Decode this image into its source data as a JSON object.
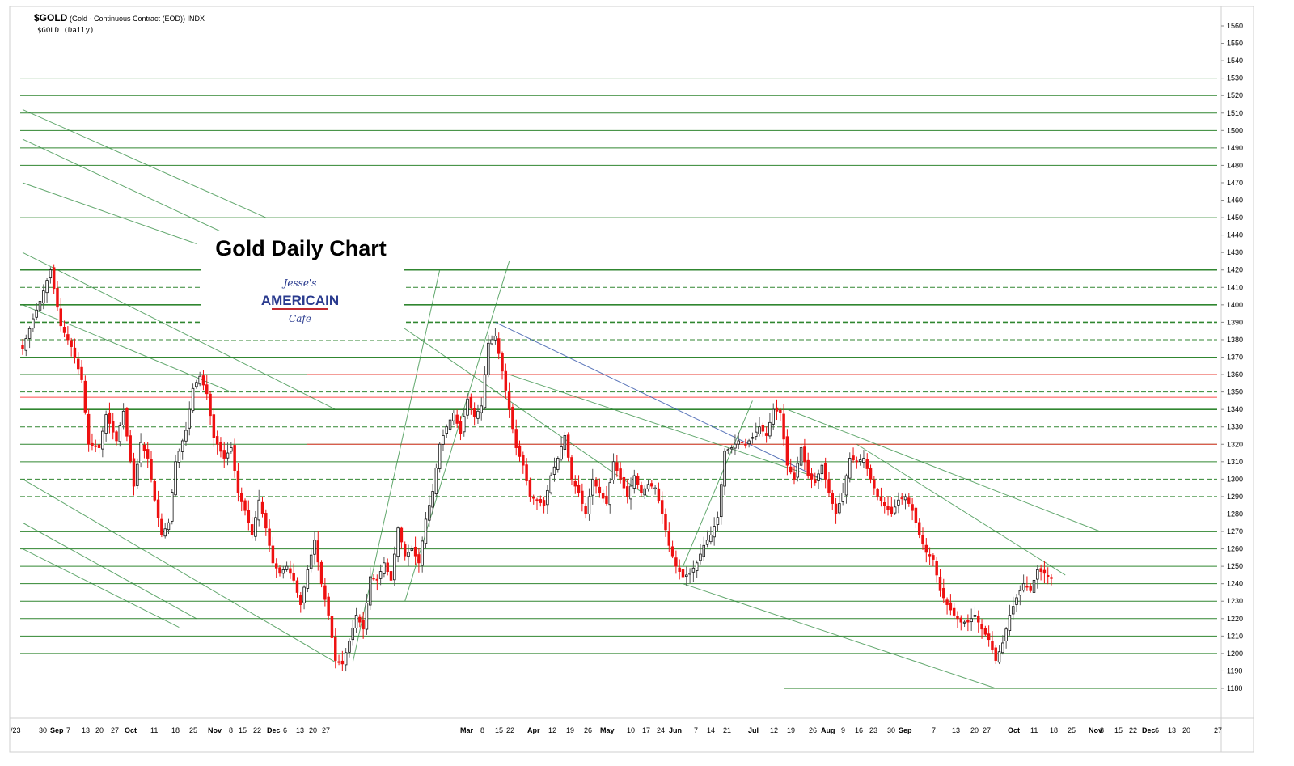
{
  "header": {
    "symbol": "$GOLD",
    "description": "(Gold - Continuous Contract (EOD)) INDX",
    "subtitle": "$GOLD (Daily)"
  },
  "title_box": {
    "title": "Gold Daily Chart",
    "logo_top": "Jesse's",
    "logo_main": "AMERICAIN",
    "logo_bottom": "Cafe"
  },
  "colors": {
    "up_candle": "#111111",
    "down_candle": "#ee1111",
    "support_line": "#1a7a1a",
    "resistance_line": "#ff3333",
    "channel_line": "#2e8b3e",
    "blue_trend": "#3355aa"
  },
  "chart_data": {
    "type": "candlestick",
    "title": "Gold Daily Chart",
    "y_axis": {
      "side": "right",
      "min": 1170,
      "max": 1565,
      "ticks": [
        1180,
        1190,
        1200,
        1210,
        1220,
        1230,
        1240,
        1250,
        1260,
        1270,
        1280,
        1290,
        1300,
        1310,
        1320,
        1330,
        1340,
        1350,
        1360,
        1370,
        1380,
        1390,
        1400,
        1410,
        1420,
        1430,
        1440,
        1450,
        1460,
        1470,
        1480,
        1490,
        1500,
        1510,
        1520,
        1530,
        1540,
        1550,
        1560
      ]
    },
    "x_axis": {
      "labels": [
        {
          "t": "/23",
          "m": false
        },
        {
          "t": "30",
          "m": false
        },
        {
          "t": "Sep",
          "m": true
        },
        {
          "t": "7",
          "m": false
        },
        {
          "t": "13",
          "m": false
        },
        {
          "t": "20",
          "m": false
        },
        {
          "t": "27",
          "m": false
        },
        {
          "t": "Oct",
          "m": true
        },
        {
          "t": "11",
          "m": false
        },
        {
          "t": "18",
          "m": false
        },
        {
          "t": "25",
          "m": false
        },
        {
          "t": "Nov",
          "m": true
        },
        {
          "t": "8",
          "m": false
        },
        {
          "t": "15",
          "m": false
        },
        {
          "t": "22",
          "m": false
        },
        {
          "t": "Dec",
          "m": true
        },
        {
          "t": "6",
          "m": false
        },
        {
          "t": "13",
          "m": false
        },
        {
          "t": "20",
          "m": false
        },
        {
          "t": "27",
          "m": false
        },
        {
          "t": "Mar",
          "m": true
        },
        {
          "t": "8",
          "m": false
        },
        {
          "t": "15",
          "m": false
        },
        {
          "t": "22",
          "m": false
        },
        {
          "t": "Apr",
          "m": true
        },
        {
          "t": "12",
          "m": false
        },
        {
          "t": "19",
          "m": false
        },
        {
          "t": "26",
          "m": false
        },
        {
          "t": "May",
          "m": true
        },
        {
          "t": "10",
          "m": false
        },
        {
          "t": "17",
          "m": false
        },
        {
          "t": "24",
          "m": false
        },
        {
          "t": "Jun",
          "m": true
        },
        {
          "t": "7",
          "m": false
        },
        {
          "t": "14",
          "m": false
        },
        {
          "t": "21",
          "m": false
        },
        {
          "t": "Jul",
          "m": true
        },
        {
          "t": "12",
          "m": false
        },
        {
          "t": "19",
          "m": false
        },
        {
          "t": "26",
          "m": false
        },
        {
          "t": "Aug",
          "m": true
        },
        {
          "t": "9",
          "m": false
        },
        {
          "t": "16",
          "m": false
        },
        {
          "t": "23",
          "m": false
        },
        {
          "t": "30",
          "m": false
        },
        {
          "t": "Sep",
          "m": true
        },
        {
          "t": "7",
          "m": false
        },
        {
          "t": "13",
          "m": false
        },
        {
          "t": "20",
          "m": false
        },
        {
          "t": "27",
          "m": false
        },
        {
          "t": "Oct",
          "m": true
        },
        {
          "t": "11",
          "m": false
        },
        {
          "t": "18",
          "m": false
        },
        {
          "t": "25",
          "m": false
        },
        {
          "t": "Nov",
          "m": true
        },
        {
          "t": "8",
          "m": false
        },
        {
          "t": "15",
          "m": false
        },
        {
          "t": "22",
          "m": false
        },
        {
          "t": "Dec",
          "m": true
        },
        {
          "t": "6",
          "m": false
        },
        {
          "t": "13",
          "m": false
        },
        {
          "t": "20",
          "m": false
        },
        {
          "t": "27",
          "m": false
        }
      ]
    },
    "price_anchors": [
      [
        0,
        1375
      ],
      [
        3,
        1392
      ],
      [
        5,
        1402
      ],
      [
        8,
        1420
      ],
      [
        11,
        1388
      ],
      [
        14,
        1376
      ],
      [
        17,
        1357
      ],
      [
        19,
        1320
      ],
      [
        22,
        1318
      ],
      [
        24,
        1337
      ],
      [
        27,
        1322
      ],
      [
        29,
        1339
      ],
      [
        32,
        1296
      ],
      [
        34,
        1321
      ],
      [
        36,
        1312
      ],
      [
        38,
        1288
      ],
      [
        40,
        1268
      ],
      [
        42,
        1275
      ],
      [
        44,
        1310
      ],
      [
        47,
        1328
      ],
      [
        49,
        1352
      ],
      [
        51,
        1359
      ],
      [
        53,
        1349
      ],
      [
        55,
        1324
      ],
      [
        58,
        1312
      ],
      [
        60,
        1318
      ],
      [
        62,
        1292
      ],
      [
        64,
        1282
      ],
      [
        66,
        1268
      ],
      [
        68,
        1288
      ],
      [
        70,
        1272
      ],
      [
        72,
        1252
      ],
      [
        74,
        1246
      ],
      [
        76,
        1250
      ],
      [
        78,
        1242
      ],
      [
        80,
        1228
      ],
      [
        82,
        1248
      ],
      [
        84,
        1265
      ],
      [
        86,
        1240
      ],
      [
        88,
        1222
      ],
      [
        90,
        1196
      ],
      [
        92,
        1194
      ],
      [
        94,
        1207
      ],
      [
        96,
        1222
      ],
      [
        98,
        1214
      ],
      [
        100,
        1244
      ],
      [
        102,
        1242
      ],
      [
        104,
        1252
      ],
      [
        106,
        1242
      ],
      [
        108,
        1272
      ],
      [
        110,
        1256
      ],
      [
        112,
        1260
      ],
      [
        114,
        1252
      ],
      [
        116,
        1277
      ],
      [
        118,
        1293
      ],
      [
        120,
        1320
      ],
      [
        122,
        1330
      ],
      [
        124,
        1338
      ],
      [
        126,
        1326
      ],
      [
        128,
        1346
      ],
      [
        130,
        1336
      ],
      [
        132,
        1342
      ],
      [
        134,
        1378
      ],
      [
        136,
        1382
      ],
      [
        138,
        1362
      ],
      [
        140,
        1340
      ],
      [
        142,
        1318
      ],
      [
        144,
        1308
      ],
      [
        146,
        1290
      ],
      [
        148,
        1288
      ],
      [
        150,
        1285
      ],
      [
        152,
        1302
      ],
      [
        154,
        1312
      ],
      [
        156,
        1325
      ],
      [
        158,
        1300
      ],
      [
        160,
        1292
      ],
      [
        162,
        1280
      ],
      [
        164,
        1300
      ],
      [
        166,
        1292
      ],
      [
        168,
        1286
      ],
      [
        170,
        1310
      ],
      [
        172,
        1300
      ],
      [
        174,
        1290
      ],
      [
        176,
        1302
      ],
      [
        178,
        1292
      ],
      [
        180,
        1297
      ],
      [
        182,
        1295
      ],
      [
        184,
        1280
      ],
      [
        186,
        1262
      ],
      [
        188,
        1250
      ],
      [
        190,
        1244
      ],
      [
        192,
        1246
      ],
      [
        194,
        1252
      ],
      [
        196,
        1262
      ],
      [
        198,
        1268
      ],
      [
        200,
        1278
      ],
      [
        202,
        1316
      ],
      [
        204,
        1318
      ],
      [
        206,
        1322
      ],
      [
        208,
        1320
      ],
      [
        210,
        1324
      ],
      [
        212,
        1330
      ],
      [
        214,
        1325
      ],
      [
        216,
        1340
      ],
      [
        218,
        1338
      ],
      [
        220,
        1308
      ],
      [
        222,
        1300
      ],
      [
        224,
        1318
      ],
      [
        226,
        1302
      ],
      [
        228,
        1298
      ],
      [
        230,
        1308
      ],
      [
        232,
        1292
      ],
      [
        234,
        1280
      ],
      [
        236,
        1292
      ],
      [
        238,
        1312
      ],
      [
        240,
        1310
      ],
      [
        242,
        1312
      ],
      [
        244,
        1300
      ],
      [
        246,
        1290
      ],
      [
        248,
        1285
      ],
      [
        250,
        1280
      ],
      [
        252,
        1288
      ],
      [
        254,
        1290
      ],
      [
        256,
        1282
      ],
      [
        258,
        1268
      ],
      [
        260,
        1258
      ],
      [
        262,
        1254
      ],
      [
        264,
        1236
      ],
      [
        266,
        1228
      ],
      [
        268,
        1222
      ],
      [
        270,
        1218
      ],
      [
        272,
        1218
      ],
      [
        274,
        1222
      ],
      [
        276,
        1214
      ],
      [
        278,
        1208
      ],
      [
        280,
        1196
      ],
      [
        282,
        1206
      ],
      [
        284,
        1222
      ],
      [
        286,
        1232
      ],
      [
        288,
        1240
      ],
      [
        290,
        1236
      ],
      [
        292,
        1248
      ],
      [
        294,
        1246
      ],
      [
        296,
        1243
      ]
    ],
    "support_levels": [
      1190,
      1200,
      1210,
      1220,
      1230,
      1240,
      1250,
      1260,
      1270,
      1280,
      1290,
      1300,
      1310,
      1320,
      1330,
      1340,
      1350,
      1360,
      1370,
      1380,
      1390,
      1400,
      1410,
      1420,
      1450,
      1480,
      1490,
      1500,
      1510,
      1520,
      1530
    ],
    "resistance_levels": [
      1320,
      1347,
      1360
    ],
    "channels": [
      {
        "from": [
          0,
          1512
        ],
        "to": [
          70,
          1450
        ]
      },
      {
        "from": [
          0,
          1495
        ],
        "to": [
          70,
          1430
        ]
      },
      {
        "from": [
          0,
          1470
        ],
        "to": [
          50,
          1435
        ]
      },
      {
        "from": [
          0,
          1430
        ],
        "to": [
          90,
          1340
        ]
      },
      {
        "from": [
          0,
          1400
        ],
        "to": [
          60,
          1350
        ]
      },
      {
        "from": [
          0,
          1300
        ],
        "to": [
          90,
          1195
        ]
      },
      {
        "from": [
          0,
          1275
        ],
        "to": [
          50,
          1220
        ]
      },
      {
        "from": [
          0,
          1260
        ],
        "to": [
          45,
          1215
        ]
      },
      {
        "from": [
          95,
          1195
        ],
        "to": [
          120,
          1420
        ]
      },
      {
        "from": [
          110,
          1230
        ],
        "to": [
          140,
          1425
        ]
      },
      {
        "from": [
          140,
          1360
        ],
        "to": [
          230,
          1300
        ]
      },
      {
        "from": [
          100,
          1400
        ],
        "to": [
          180,
          1290
        ]
      },
      {
        "from": [
          190,
          1240
        ],
        "to": [
          280,
          1180
        ]
      },
      {
        "from": [
          220,
          1340
        ],
        "to": [
          310,
          1270
        ]
      },
      {
        "from": [
          240,
          1320
        ],
        "to": [
          300,
          1245
        ]
      },
      {
        "from": [
          190,
          1250
        ],
        "to": [
          210,
          1345
        ]
      }
    ]
  }
}
